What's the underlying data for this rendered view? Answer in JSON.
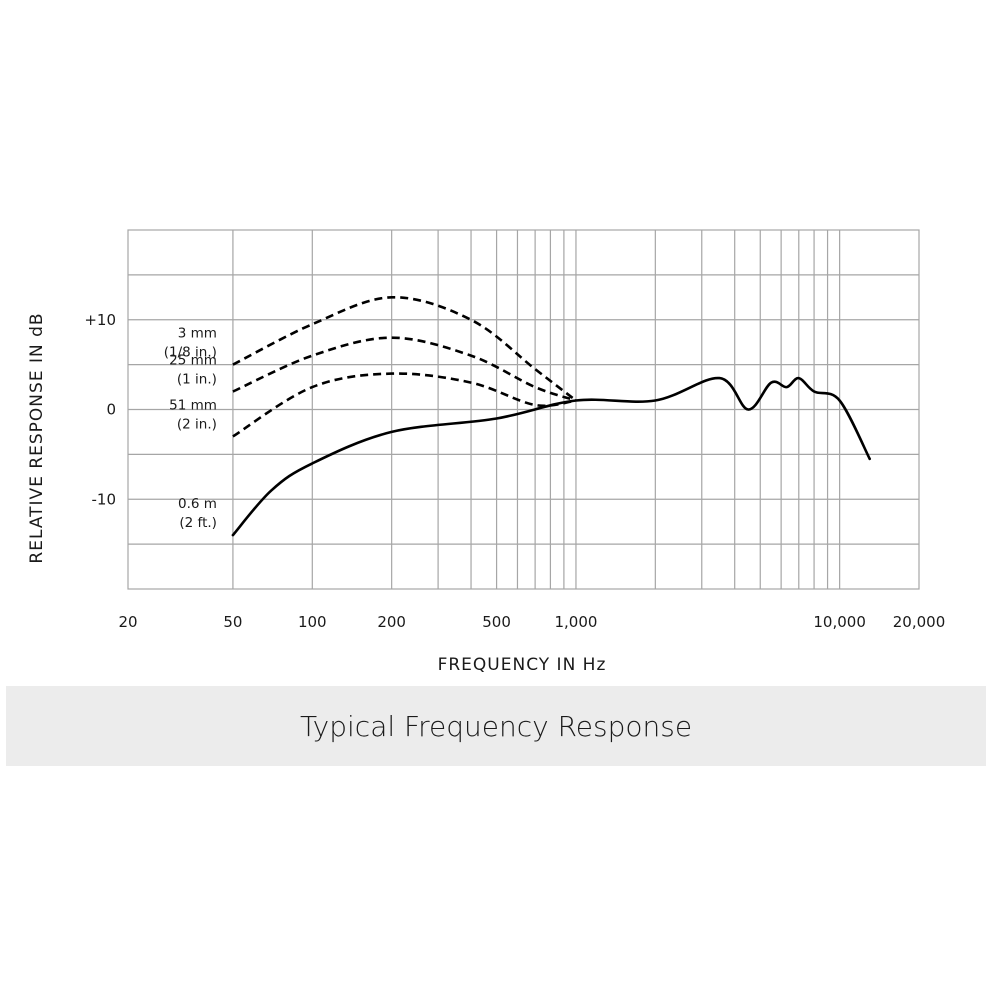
{
  "caption": "Typical Frequency Response",
  "chart_data": {
    "type": "line",
    "xlabel": "FREQUENCY IN Hz",
    "ylabel": "RELATIVE RESPONSE IN dB",
    "xscale": "log",
    "xlim": [
      20,
      20000
    ],
    "ylim": [
      -20,
      20
    ],
    "x_tick_labels": [
      {
        "value": 20,
        "label": "20"
      },
      {
        "value": 50,
        "label": "50"
      },
      {
        "value": 100,
        "label": "100"
      },
      {
        "value": 200,
        "label": "200"
      },
      {
        "value": 500,
        "label": "500"
      },
      {
        "value": 1000,
        "label": "1,000"
      },
      {
        "value": 10000,
        "label": "10,000"
      },
      {
        "value": 20000,
        "label": "20,000"
      }
    ],
    "y_tick_labels": [
      {
        "value": 10,
        "label": "+10"
      },
      {
        "value": 0,
        "label": "0"
      },
      {
        "value": -10,
        "label": "-10"
      }
    ],
    "grid": true,
    "series": [
      {
        "label_line1": "3 mm",
        "label_line2": "(1/8 in.)",
        "style": "dashed",
        "points": [
          [
            50,
            5
          ],
          [
            100,
            9.5
          ],
          [
            200,
            12.5
          ],
          [
            400,
            10
          ],
          [
            700,
            4.5
          ],
          [
            1000,
            1
          ]
        ]
      },
      {
        "label_line1": "25 mm",
        "label_line2": "(1 in.)",
        "style": "dashed",
        "points": [
          [
            50,
            2
          ],
          [
            100,
            6
          ],
          [
            200,
            8
          ],
          [
            400,
            6
          ],
          [
            700,
            2.5
          ],
          [
            1000,
            1
          ]
        ]
      },
      {
        "label_line1": "51 mm",
        "label_line2": "(2 in.)",
        "style": "dashed",
        "points": [
          [
            50,
            -3
          ],
          [
            100,
            2.5
          ],
          [
            200,
            4
          ],
          [
            400,
            3
          ],
          [
            700,
            0.5
          ],
          [
            1000,
            1
          ]
        ]
      },
      {
        "label_line1": "0.6 m",
        "label_line2": "(2 ft.)",
        "style": "solid",
        "points": [
          [
            50,
            -14
          ],
          [
            70,
            -9
          ],
          [
            100,
            -6
          ],
          [
            200,
            -2.5
          ],
          [
            500,
            -1
          ],
          [
            1000,
            1
          ],
          [
            2000,
            1
          ],
          [
            3500,
            3.5
          ],
          [
            4500,
            0
          ],
          [
            5500,
            3
          ],
          [
            6300,
            2.5
          ],
          [
            7000,
            3.5
          ],
          [
            8000,
            2
          ],
          [
            10000,
            1
          ],
          [
            13000,
            -5.5
          ]
        ]
      }
    ]
  }
}
